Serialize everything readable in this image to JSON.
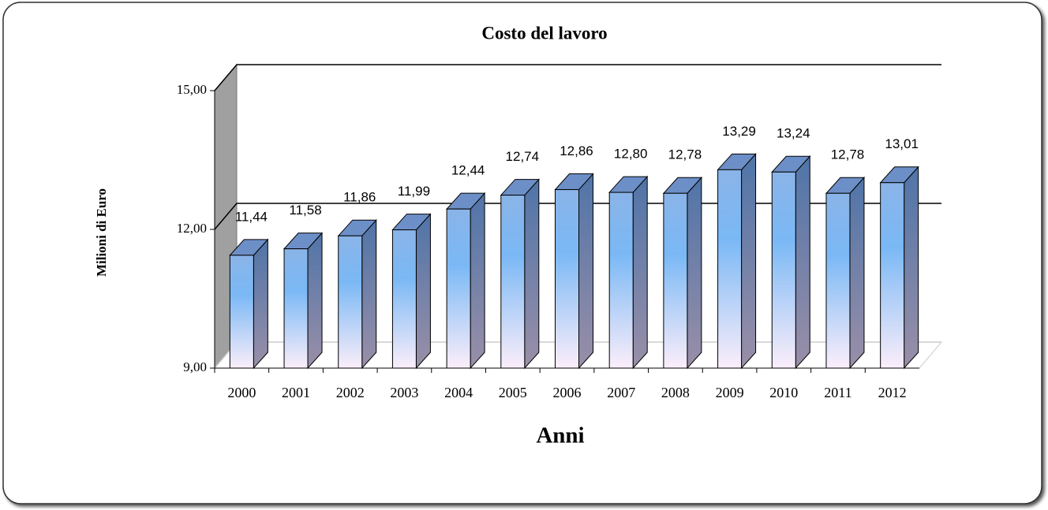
{
  "chart_data": {
    "type": "bar3d",
    "title": "Costo del lavoro",
    "y_label": "Milioni di Euro",
    "x_label": "Anni",
    "categories": [
      "2000",
      "2001",
      "2002",
      "2003",
      "2004",
      "2005",
      "2006",
      "2007",
      "2008",
      "2009",
      "2010",
      "2011",
      "2012"
    ],
    "values": [
      11.44,
      11.58,
      11.86,
      11.99,
      12.44,
      12.74,
      12.86,
      12.8,
      12.78,
      13.29,
      13.24,
      12.78,
      13.01
    ],
    "value_labels": [
      "11,44",
      "11,58",
      "11,86",
      "11,99",
      "12,44",
      "12,74",
      "12,86",
      "12,80",
      "12,78",
      "13,29",
      "13,24",
      "12,78",
      "13,01"
    ],
    "color": "#7ab8f5",
    "ylim": [
      9,
      15
    ],
    "yticks": [
      {
        "value": 9,
        "label": "9,00"
      },
      {
        "value": 12,
        "label": "12,00"
      },
      {
        "value": 15,
        "label": "15,00"
      }
    ],
    "grid": true
  }
}
